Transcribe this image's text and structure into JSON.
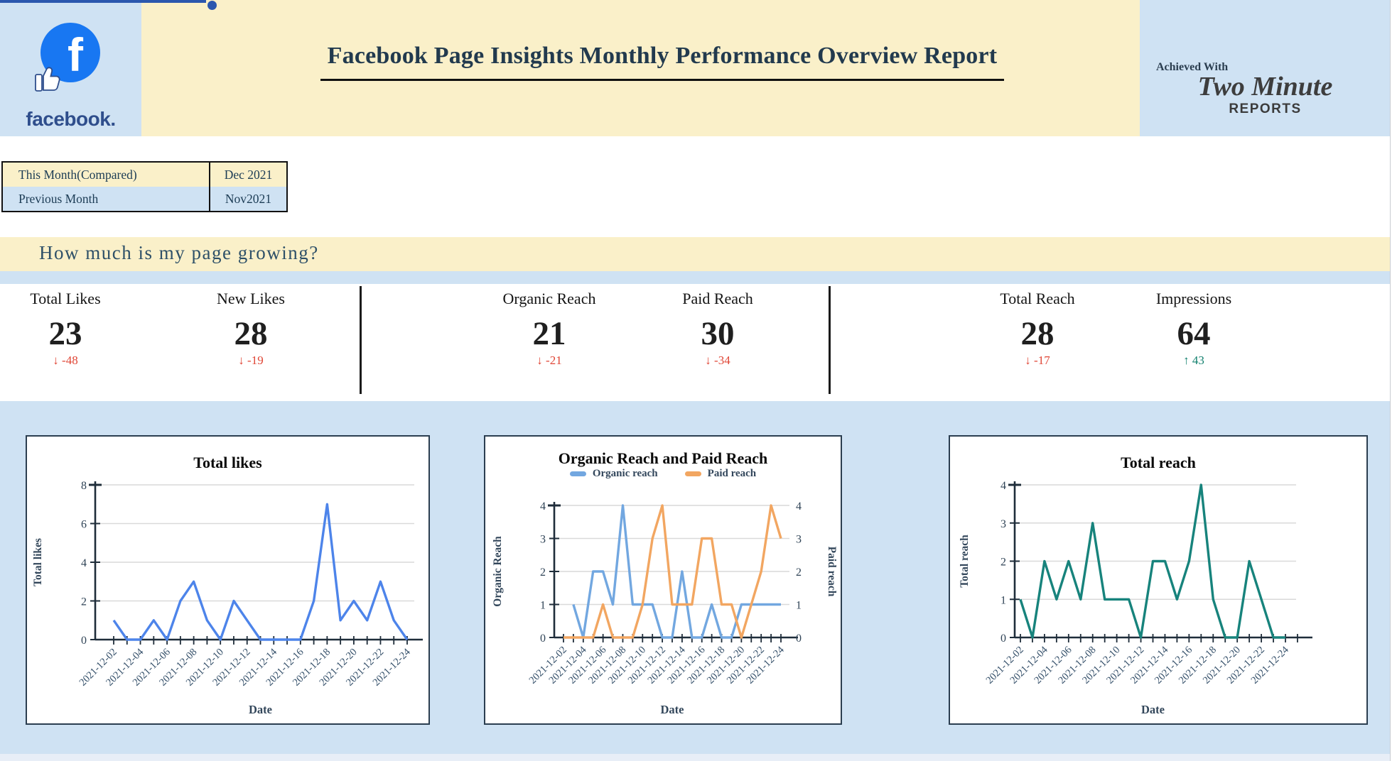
{
  "header": {
    "title": "Facebook Page Insights Monthly Performance Overview Report",
    "logo_wordmark": "facebook.",
    "achieved_with": "Achieved With",
    "brand_name": "Two Minute",
    "brand_sub": "REPORTS"
  },
  "period_table": {
    "rows": [
      {
        "label": "This Month(Compared)",
        "value": "Dec 2021"
      },
      {
        "label": "Previous Month",
        "value": "Nov2021"
      }
    ]
  },
  "section": {
    "question": "How much is my page growing?"
  },
  "kpis": [
    {
      "label": "Total Likes",
      "value": "23",
      "arrow": "↓",
      "delta": "-48",
      "direction": "down"
    },
    {
      "label": "New Likes",
      "value": "28",
      "arrow": "↓",
      "delta": "-19",
      "direction": "down"
    },
    {
      "label": "Organic Reach",
      "value": "21",
      "arrow": "↓",
      "delta": "-21",
      "direction": "down"
    },
    {
      "label": "Paid Reach",
      "value": "30",
      "arrow": "↓",
      "delta": "-34",
      "direction": "down"
    },
    {
      "label": "Total Reach",
      "value": "28",
      "arrow": "↓",
      "delta": "-17",
      "direction": "down"
    },
    {
      "label": "Impressions",
      "value": "64",
      "arrow": "↑",
      "delta": "43",
      "direction": "up"
    }
  ],
  "colors": {
    "delta_down": "#e04636",
    "delta_up": "#12806e",
    "facebook_blue": "#1877f2",
    "facebook_navy": "#2f4e8c",
    "header_yellow": "#faf0c9",
    "panel_blue": "#cfe2f3",
    "accent_line": "#2b57ae",
    "axis": "#1f2d3a",
    "grid": "#d9d9d9",
    "tick_text": "#2f4356",
    "date_text": "#35506a",
    "axis_title_text": "#32465a",
    "chart_title_text": "#0a0a0a"
  },
  "chart_data": [
    {
      "type": "line",
      "title": "Total likes",
      "xlabel": "Date",
      "ylabel": "Total likes",
      "ylim": [
        0,
        8
      ],
      "yticks": [
        0,
        2,
        4,
        6,
        8
      ],
      "grid": true,
      "legend": false,
      "x": [
        "2021-12-02",
        "2021-12-03",
        "2021-12-04",
        "2021-12-05",
        "2021-12-06",
        "2021-12-07",
        "2021-12-08",
        "2021-12-09",
        "2021-12-10",
        "2021-12-11",
        "2021-12-12",
        "2021-12-13",
        "2021-12-14",
        "2021-12-15",
        "2021-12-16",
        "2021-12-17",
        "2021-12-18",
        "2021-12-19",
        "2021-12-20",
        "2021-12-21",
        "2021-12-22",
        "2021-12-23",
        "2021-12-24"
      ],
      "x_label_every": 2,
      "series": [
        {
          "name": "Total likes",
          "color": "#4d84ea",
          "values": [
            1,
            0,
            0,
            1,
            0,
            2,
            3,
            1,
            0,
            2,
            1,
            0,
            0,
            0,
            0,
            2,
            7,
            1,
            2,
            1,
            3,
            1,
            0
          ]
        }
      ]
    },
    {
      "type": "line",
      "title": "Organic Reach and Paid Reach",
      "xlabel": "Date",
      "ylabel": "Organic Reach",
      "y2label": "Paid reach",
      "ylim": [
        0,
        4
      ],
      "yticks": [
        0,
        1,
        2,
        3,
        4
      ],
      "grid": true,
      "legend": true,
      "legend_position": "top",
      "x": [
        "2021-12-02",
        "2021-12-03",
        "2021-12-04",
        "2021-12-05",
        "2021-12-06",
        "2021-12-07",
        "2021-12-08",
        "2021-12-09",
        "2021-12-10",
        "2021-12-11",
        "2021-12-12",
        "2021-12-13",
        "2021-12-14",
        "2021-12-15",
        "2021-12-16",
        "2021-12-17",
        "2021-12-18",
        "2021-12-19",
        "2021-12-20",
        "2021-12-21",
        "2021-12-22",
        "2021-12-23",
        "2021-12-24"
      ],
      "x_label_every": 2,
      "series": [
        {
          "name": "Organic reach",
          "color": "#72a7e0",
          "values": [
            null,
            1,
            0,
            2,
            2,
            1,
            4,
            1,
            1,
            1,
            0,
            0,
            2,
            0,
            0,
            1,
            0,
            0,
            1,
            1,
            1,
            1,
            1
          ]
        },
        {
          "name": "Paid reach",
          "color": "#f2a661",
          "values": [
            0,
            0,
            0,
            0,
            1,
            0,
            0,
            0,
            1,
            3,
            4,
            1,
            1,
            1,
            3,
            3,
            1,
            1,
            0,
            1,
            2,
            4,
            3
          ]
        }
      ]
    },
    {
      "type": "line",
      "title": "Total reach",
      "xlabel": "Date",
      "ylabel": "Total reach",
      "ylim": [
        0,
        4
      ],
      "yticks": [
        0,
        1,
        2,
        3,
        4
      ],
      "grid": true,
      "legend": false,
      "x": [
        "2021-12-02",
        "2021-12-03",
        "2021-12-04",
        "2021-12-05",
        "2021-12-06",
        "2021-12-07",
        "2021-12-08",
        "2021-12-09",
        "2021-12-10",
        "2021-12-11",
        "2021-12-12",
        "2021-12-13",
        "2021-12-14",
        "2021-12-15",
        "2021-12-16",
        "2021-12-17",
        "2021-12-18",
        "2021-12-19",
        "2021-12-20",
        "2021-12-21",
        "2021-12-22",
        "2021-12-23",
        "2021-12-24"
      ],
      "x_label_every": 2,
      "series": [
        {
          "name": "Total reach",
          "color": "#17837c",
          "values": [
            1,
            0,
            2,
            1,
            2,
            1,
            3,
            1,
            1,
            1,
            0,
            2,
            2,
            1,
            2,
            4,
            1,
            0,
            0,
            2,
            1,
            0,
            0
          ]
        }
      ]
    }
  ]
}
